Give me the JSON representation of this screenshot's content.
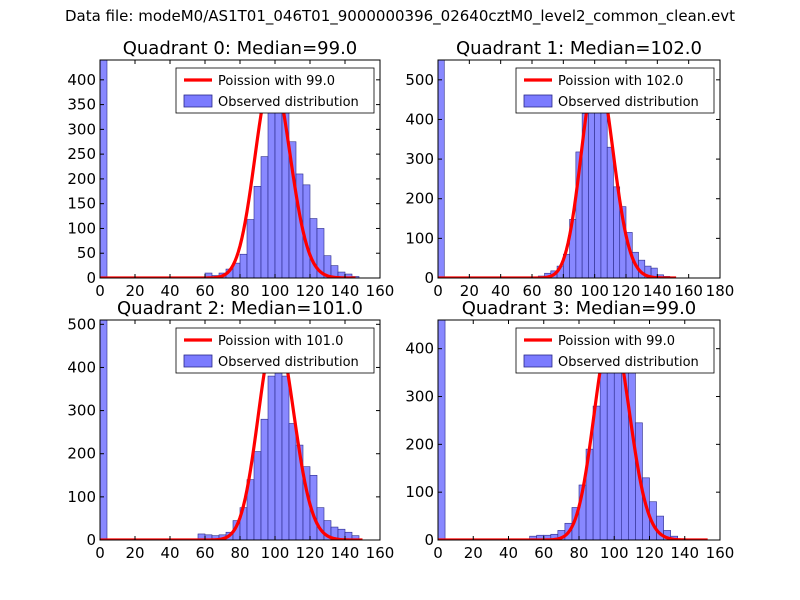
{
  "figure_title": "Data file: modeM0/AS1T01_046T01_9000000396_02640cztM0_level2_common_clean.evt",
  "colors": {
    "hist_fill": "#7b7bff",
    "hist_edge": "#2a2a8a",
    "poisson": "#ff0000",
    "axes": "#000000"
  },
  "chart_data": [
    {
      "type": "bar",
      "title": "Quadrant 0: Median=99.0",
      "xlim": [
        0,
        160
      ],
      "ylim": [
        0,
        440
      ],
      "xticks": [
        0,
        20,
        40,
        60,
        80,
        100,
        120,
        140,
        160
      ],
      "yticks": [
        0,
        50,
        100,
        150,
        200,
        250,
        300,
        350,
        400
      ],
      "legend": [
        "Poission with 99.0",
        "Observed distribution"
      ],
      "bin_width": 4,
      "bins": [
        [
          0,
          440
        ],
        [
          60,
          10
        ],
        [
          64,
          5
        ],
        [
          68,
          10
        ],
        [
          72,
          18
        ],
        [
          76,
          30
        ],
        [
          80,
          48
        ],
        [
          84,
          118
        ],
        [
          88,
          185
        ],
        [
          92,
          245
        ],
        [
          96,
          335
        ],
        [
          100,
          360
        ],
        [
          104,
          340
        ],
        [
          108,
          275
        ],
        [
          112,
          210
        ],
        [
          116,
          188
        ],
        [
          120,
          120
        ],
        [
          124,
          100
        ],
        [
          128,
          45
        ],
        [
          132,
          25
        ],
        [
          136,
          12
        ],
        [
          140,
          8
        ],
        [
          144,
          3
        ]
      ],
      "poisson_mean": 99.0,
      "poisson_peak": 410,
      "poisson_x_range": [
        0,
        146
      ]
    },
    {
      "type": "bar",
      "title": "Quadrant 1: Median=102.0",
      "xlim": [
        0,
        180
      ],
      "ylim": [
        0,
        550
      ],
      "xticks": [
        0,
        20,
        40,
        60,
        80,
        100,
        120,
        140,
        160,
        180
      ],
      "yticks": [
        0,
        100,
        200,
        300,
        400,
        500
      ],
      "legend": [
        "Poission with 102.0",
        "Observed distribution"
      ],
      "bin_width": 4,
      "bins": [
        [
          0,
          550
        ],
        [
          64,
          5
        ],
        [
          68,
          12
        ],
        [
          72,
          18
        ],
        [
          76,
          30
        ],
        [
          80,
          60
        ],
        [
          84,
          148
        ],
        [
          88,
          318
        ],
        [
          92,
          415
        ],
        [
          96,
          495
        ],
        [
          100,
          525
        ],
        [
          104,
          460
        ],
        [
          108,
          330
        ],
        [
          112,
          230
        ],
        [
          116,
          180
        ],
        [
          120,
          115
        ],
        [
          124,
          65
        ],
        [
          128,
          45
        ],
        [
          132,
          30
        ],
        [
          136,
          25
        ],
        [
          140,
          8
        ],
        [
          144,
          4
        ]
      ],
      "poisson_mean": 102.0,
      "poisson_peak": 525,
      "poisson_x_range": [
        0,
        152
      ]
    },
    {
      "type": "bar",
      "title": "Quadrant 2: Median=101.0",
      "xlim": [
        0,
        160
      ],
      "ylim": [
        0,
        510
      ],
      "xticks": [
        0,
        20,
        40,
        60,
        80,
        100,
        120,
        140,
        160
      ],
      "yticks": [
        0,
        100,
        200,
        300,
        400,
        500
      ],
      "legend": [
        "Poission with 101.0",
        "Observed distribution"
      ],
      "bin_width": 4,
      "bins": [
        [
          0,
          510
        ],
        [
          56,
          14
        ],
        [
          60,
          12
        ],
        [
          64,
          10
        ],
        [
          68,
          12
        ],
        [
          72,
          18
        ],
        [
          76,
          45
        ],
        [
          80,
          75
        ],
        [
          84,
          140
        ],
        [
          88,
          205
        ],
        [
          92,
          280
        ],
        [
          96,
          380
        ],
        [
          100,
          425
        ],
        [
          104,
          380
        ],
        [
          108,
          270
        ],
        [
          112,
          220
        ],
        [
          116,
          170
        ],
        [
          120,
          150
        ],
        [
          124,
          75
        ],
        [
          128,
          45
        ],
        [
          132,
          30
        ],
        [
          136,
          25
        ],
        [
          140,
          18
        ],
        [
          144,
          10
        ]
      ],
      "poisson_mean": 101.0,
      "poisson_peak": 485,
      "poisson_x_range": [
        0,
        150
      ]
    },
    {
      "type": "bar",
      "title": "Quadrant 3: Median=99.0",
      "xlim": [
        0,
        160
      ],
      "ylim": [
        0,
        460
      ],
      "xticks": [
        0,
        20,
        40,
        60,
        80,
        100,
        120,
        140,
        160
      ],
      "yticks": [
        0,
        100,
        200,
        300,
        400
      ],
      "legend": [
        "Poission with 99.0",
        "Observed distribution"
      ],
      "bin_width": 4,
      "bins": [
        [
          0,
          460
        ],
        [
          52,
          8
        ],
        [
          56,
          10
        ],
        [
          60,
          10
        ],
        [
          64,
          12
        ],
        [
          68,
          20
        ],
        [
          72,
          35
        ],
        [
          76,
          68
        ],
        [
          80,
          115
        ],
        [
          84,
          190
        ],
        [
          88,
          280
        ],
        [
          92,
          375
        ],
        [
          96,
          405
        ],
        [
          100,
          430
        ],
        [
          104,
          415
        ],
        [
          108,
          360
        ],
        [
          112,
          245
        ],
        [
          116,
          130
        ],
        [
          120,
          80
        ],
        [
          124,
          50
        ],
        [
          128,
          20
        ],
        [
          132,
          8
        ]
      ],
      "poisson_mean": 99.0,
      "poisson_peak": 440,
      "poisson_x_range": [
        0,
        153
      ]
    }
  ]
}
